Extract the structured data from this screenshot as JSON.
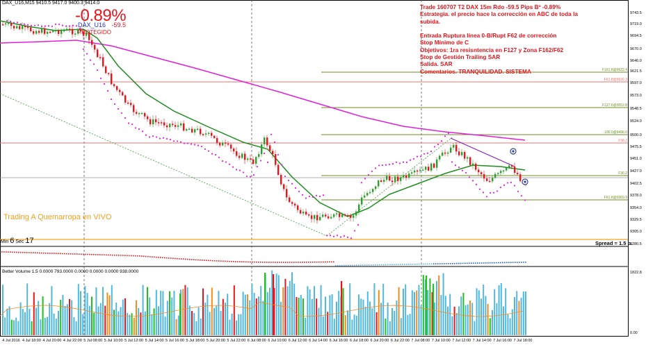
{
  "chart_header": {
    "symbol_info": "DAX_U16,M15  9410.5 9417.0 9400.3 9414.0"
  },
  "trade_display": {
    "result_percent": "-0.89%",
    "symbol": "DAX_U16",
    "pips": "-59.5",
    "protected_label": "PROTEGIDO"
  },
  "notes": [
    "Trade 160707 T2 DAX 15m Rdo -59.5 Pips Bº -0.89%",
    "Estrategia. el precio hace la corrección en ABC de toda la subida.",
    "",
    "Entrada Ruptura línea 0-B/Rupt F62 de corrección",
    "Stop Mínimo de C",
    "Objetivos: 1ra resisntencia en F127 y Zona F162/F62",
    "Stop de Gestión Trailing SAR",
    "Salida. SAR",
    "Comentarios. TRANQUILIDAD. SISTEMA"
  ],
  "live_label": "Trading A Quemarropa en VIVO",
  "timer": {
    "min_label": "Min",
    "min_value": "6",
    "sec_label": "Sec",
    "sec_value": "17"
  },
  "spread_label": "Spread = 1.5 p.",
  "volume_header": "Better Volume 1.5 0.0000 793.0000 0.0000 0.0000 0.0000 938.0000",
  "y_axis": [
    "9743.5",
    "9719.0",
    "9694.5",
    "9670.0",
    "9646.0",
    "9621.5",
    "9597.0",
    "9573.0",
    "9548.5",
    "9524.0",
    "9500.0",
    "9475.5",
    "9451.0",
    "9427.0",
    "9402.5",
    "9378.0",
    "9354.0",
    "9329.5",
    "9305.0",
    "9280.5"
  ],
  "volume_axis": [
    "1822.8",
    "0.00"
  ],
  "x_axis": [
    "4 Jul 2016",
    "4 Jul 18:00",
    "4 Jul 20:00",
    "4 Jul 22:00",
    "5 Jul 08:00",
    "5 Jul 10:00",
    "5 Jul 12:00",
    "5 Jul 14:00",
    "5 Jul 16:00",
    "5 Jul 18:00",
    "5 Jul 20:00",
    "5 Jul 22:00",
    "6 Jul 08:00",
    "6 Jul 10:00",
    "6 Jul 12:00",
    "6 Jul 14:00",
    "6 Jul 16:00",
    "6 Jul 18:00",
    "6 Jul 20:00",
    "6 Jul 22:00",
    "7 Jul 08:00",
    "7 Jul 10:00",
    "7 Jul 12:00",
    "7 Jul 14:00",
    "7 Jul 16:00",
    "7 Jul 18:00"
  ],
  "fib_labels": {
    "f161": "F161.8@9622.4",
    "f61": "F61.8@9626.3",
    "f127": "F127.6@9552.8",
    "f100": "100.0@9496.0",
    "f38": "F38.2",
    "f36": "F36.2",
    "f61b": "F61.8@9369.9"
  },
  "colors": {
    "bull": "#2ca02c",
    "bear": "#e8141c",
    "sma200": "#e020d8",
    "ma_green": "#1e8c1e",
    "sar": "#e020d8",
    "fib_line": "#6b8e23",
    "red_line": "#f07070",
    "orange_line": "#f0a020",
    "vol_blue": "#4fb8e0",
    "vol_green": "#1fc01f",
    "vol_red": "#e8141c",
    "vol_orange": "#f08c20"
  }
}
